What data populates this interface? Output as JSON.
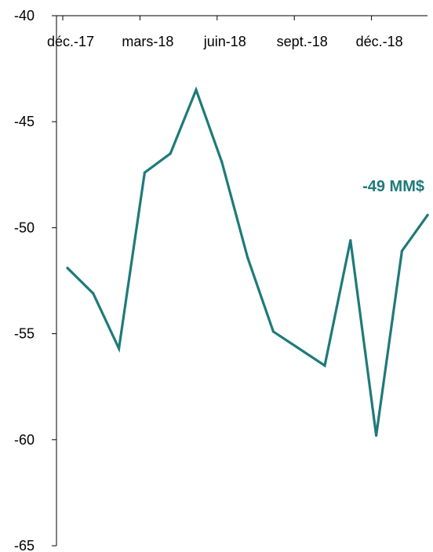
{
  "chart_data": {
    "type": "line",
    "title": "",
    "xlabel": "",
    "ylabel": "",
    "x": [
      "déc.-17",
      "janv.-18",
      "févr.-18",
      "mars-18",
      "avr.-18",
      "mai-18",
      "juin-18",
      "juil.-18",
      "août-18",
      "sept.-18",
      "oct.-18",
      "nov.-18",
      "déc.-18",
      "janv.-19",
      "févr.-19"
    ],
    "x_tick_labels": [
      {
        "x_index": 0,
        "label": "déc.-17"
      },
      {
        "x_index": 3,
        "label": "mars-18"
      },
      {
        "x_index": 6,
        "label": "juin-18"
      },
      {
        "x_index": 9,
        "label": "sept.-18"
      },
      {
        "x_index": 12,
        "label": "déc.-18"
      }
    ],
    "series": [
      {
        "values": [
          -51.9,
          -53.1,
          -55.7,
          -47.4,
          -46.5,
          -43.5,
          -46.9,
          -51.4,
          -54.9,
          null,
          -56.5,
          -50.6,
          -59.8,
          -51.1,
          -49.4
        ]
      }
    ],
    "ylim": [
      -65,
      -40
    ],
    "y_ticks": [
      -40,
      -45,
      -50,
      -55,
      -60,
      -65
    ],
    "y_tick_labels": [
      "-40",
      "-45",
      "-50",
      "-55",
      "-60",
      "-65"
    ],
    "grid": false,
    "x_axis_position": "top",
    "annotation": "-49 MM$",
    "colors": {
      "line": "#1f7a7a",
      "axis": "#000000"
    }
  }
}
